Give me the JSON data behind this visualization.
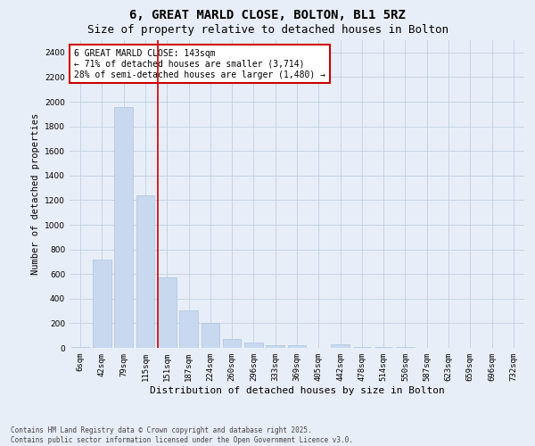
{
  "title": "6, GREAT MARLD CLOSE, BOLTON, BL1 5RZ",
  "subtitle": "Size of property relative to detached houses in Bolton",
  "xlabel": "Distribution of detached houses by size in Bolton",
  "ylabel": "Number of detached properties",
  "bar_color": "#c8d8ee",
  "bar_edge_color": "#aac4e0",
  "categories": [
    "6sqm",
    "42sqm",
    "79sqm",
    "115sqm",
    "151sqm",
    "187sqm",
    "224sqm",
    "260sqm",
    "296sqm",
    "333sqm",
    "369sqm",
    "405sqm",
    "442sqm",
    "478sqm",
    "514sqm",
    "550sqm",
    "587sqm",
    "623sqm",
    "659sqm",
    "696sqm",
    "732sqm"
  ],
  "values": [
    10,
    720,
    1960,
    1240,
    575,
    305,
    200,
    75,
    40,
    25,
    25,
    0,
    30,
    10,
    5,
    5,
    0,
    0,
    0,
    0,
    0
  ],
  "property_line_idx": 4,
  "annotation_title": "6 GREAT MARLD CLOSE: 143sqm",
  "annotation_line1": "← 71% of detached houses are smaller (3,714)",
  "annotation_line2": "28% of semi-detached houses are larger (1,480) →",
  "annotation_box_color": "#ffffff",
  "annotation_box_edge": "#cc0000",
  "vline_color": "#cc0000",
  "grid_color": "#c0cfe0",
  "background_color": "#e8eef8",
  "fig_background": "#e8eef8",
  "ylim": [
    0,
    2500
  ],
  "yticks": [
    0,
    200,
    400,
    600,
    800,
    1000,
    1200,
    1400,
    1600,
    1800,
    2000,
    2200,
    2400
  ],
  "footnote": "Contains HM Land Registry data © Crown copyright and database right 2025.\nContains public sector information licensed under the Open Government Licence v3.0.",
  "title_fontsize": 10,
  "subtitle_fontsize": 9,
  "xlabel_fontsize": 8,
  "ylabel_fontsize": 7.5,
  "tick_fontsize": 6.5,
  "annotation_fontsize": 7,
  "footnote_fontsize": 5.5
}
